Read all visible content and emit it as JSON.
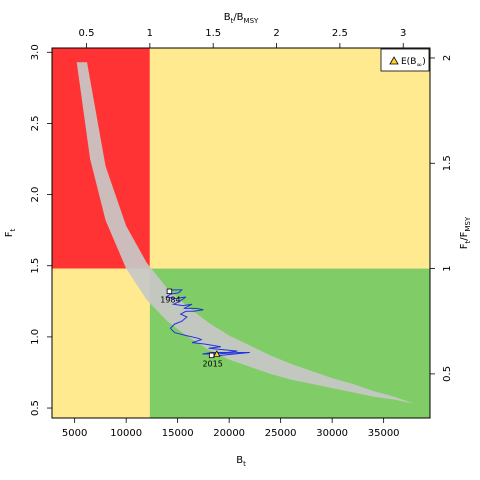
{
  "chart_data": {
    "type": "line",
    "xlabel_main": "B",
    "xlabel_sub": "t",
    "ylabel_main": "F",
    "ylabel_sub": "t",
    "top_label_main": "B",
    "top_label_sub1": "t",
    "top_label_mid": "/B",
    "top_label_sub2": "MSY",
    "right_label_main": "F",
    "right_label_sub1": "t",
    "right_label_mid": "/F",
    "right_label_sub2": "MSY",
    "xlim": [
      2800,
      39500
    ],
    "ylim": [
      0.43,
      3.03
    ],
    "b_msy": 12300,
    "f_msy": 1.48,
    "x_ticks": [
      5000,
      10000,
      15000,
      20000,
      25000,
      30000,
      35000
    ],
    "y_ticks": [
      0.5,
      1.0,
      1.5,
      2.0,
      2.5,
      3.0
    ],
    "top_ticks": [
      0.5,
      1,
      1.5,
      2,
      2.5,
      3
    ],
    "right_ticks": [
      0.5,
      1,
      1.5,
      2
    ],
    "zone_colors": {
      "red": "#ff3333",
      "yellow": "#ffea8f",
      "green": "#80cc66"
    },
    "band_color": "#c8c8c8",
    "trajectory_color": "#2233dd",
    "legend": {
      "label_main": "E(B",
      "label_sub": "∞",
      "label_end": ")",
      "position": "top-right",
      "marker_color": "#ffd42a"
    },
    "band": {
      "x_lower": [
        5200,
        6500,
        8000,
        10000,
        12000,
        14000,
        16000,
        18000,
        20000,
        22000,
        24000,
        26000,
        28000,
        30000,
        32000,
        34000,
        36000,
        38000
      ],
      "y_lower": [
        2.93,
        2.25,
        1.82,
        1.48,
        1.26,
        1.11,
        1.0,
        0.91,
        0.84,
        0.79,
        0.74,
        0.7,
        0.67,
        0.64,
        0.61,
        0.58,
        0.56,
        0.53
      ],
      "x_upper": [
        6200,
        8000,
        10000,
        12000,
        14000,
        16000,
        18000,
        20000,
        22000,
        24000,
        26000,
        28000,
        30000,
        32000,
        34000,
        36000,
        38000
      ],
      "y_upper": [
        2.93,
        2.2,
        1.78,
        1.52,
        1.34,
        1.21,
        1.1,
        1.01,
        0.94,
        0.87,
        0.81,
        0.76,
        0.71,
        0.67,
        0.62,
        0.58,
        0.53
      ]
    },
    "trajectory": {
      "x": [
        14200,
        14600,
        15400,
        15100,
        14300,
        13900,
        14800,
        15800,
        15200,
        14600,
        15500,
        16400,
        15600,
        16800,
        17500,
        16600,
        15800,
        15300,
        15900,
        15400,
        14700,
        14300,
        14700,
        15800,
        17000,
        17300,
        16400,
        17600,
        18400,
        19200,
        18000,
        19500,
        20800,
        19800,
        18300,
        17400,
        18600,
        21000,
        22000,
        20500,
        19200,
        18300
      ],
      "y": [
        1.32,
        1.33,
        1.33,
        1.31,
        1.3,
        1.28,
        1.27,
        1.28,
        1.25,
        1.23,
        1.22,
        1.23,
        1.2,
        1.2,
        1.19,
        1.18,
        1.18,
        1.16,
        1.14,
        1.11,
        1.09,
        1.06,
        1.03,
        1.01,
        0.99,
        0.98,
        0.96,
        0.95,
        0.94,
        0.93,
        0.92,
        0.91,
        0.9,
        0.89,
        0.89,
        0.88,
        0.88,
        0.89,
        0.89,
        0.88,
        0.87,
        0.87
      ]
    },
    "points": [
      {
        "label": "1984",
        "x": 14200,
        "y": 1.32
      },
      {
        "label": "2015",
        "x": 18300,
        "y": 0.87
      }
    ],
    "legend_marker_point": {
      "x": 18800,
      "y": 0.88
    }
  }
}
